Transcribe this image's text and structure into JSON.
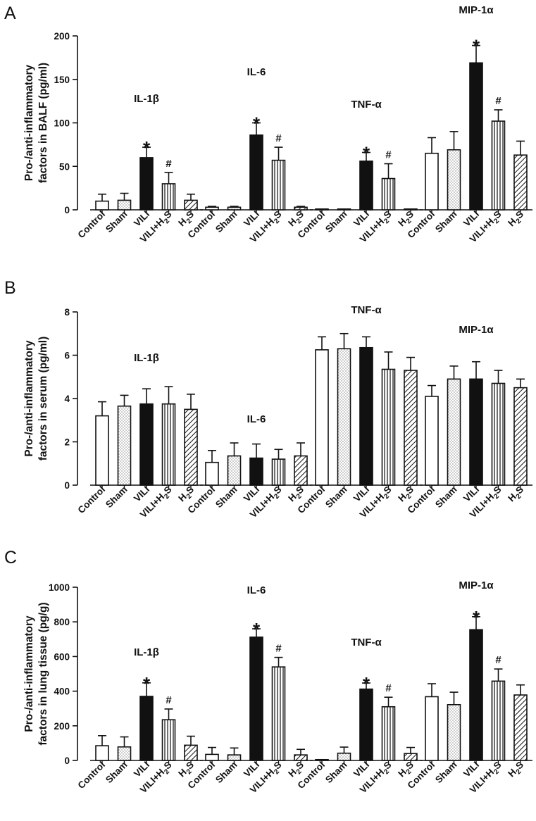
{
  "chart_data": [
    {
      "type": "bar",
      "panel": "A",
      "ylabel_lines": [
        "Pro-/anti-inflammatory",
        "factors in BALF (pg/ml)"
      ],
      "ylim": [
        0,
        200
      ],
      "yticks": [
        0,
        50,
        100,
        150,
        200
      ],
      "categories": [
        "Control",
        "Sham",
        "VILI",
        "VILI+H2S",
        "H2S"
      ],
      "groups": [
        {
          "name": "IL-1β",
          "values": [
            10,
            11,
            60,
            30,
            11
          ],
          "errors": [
            8,
            8,
            12,
            13,
            7
          ],
          "sig": [
            "",
            "",
            "*",
            "#",
            ""
          ]
        },
        {
          "name": "IL-6",
          "values": [
            3,
            3,
            86,
            57,
            3
          ],
          "errors": [
            1,
            1,
            14,
            15,
            1
          ],
          "sig": [
            "",
            "",
            "*",
            "#",
            ""
          ]
        },
        {
          "name": "TNF-α",
          "values": [
            0.5,
            0.5,
            56,
            36,
            0.5
          ],
          "errors": [
            0,
            0,
            10,
            17,
            0
          ],
          "sig": [
            "",
            "",
            "*",
            "#",
            ""
          ]
        },
        {
          "name": "MIP-1α",
          "values": [
            65,
            69,
            169,
            102,
            63
          ],
          "errors": [
            18,
            21,
            20,
            13,
            16
          ],
          "sig": [
            "",
            "",
            "*",
            "#",
            ""
          ]
        }
      ]
    },
    {
      "type": "bar",
      "panel": "B",
      "ylabel_lines": [
        "Pro-/anti-inflammatory",
        "factors in serum (pg/ml)"
      ],
      "ylim": [
        0,
        8
      ],
      "yticks": [
        0,
        2,
        4,
        6,
        8
      ],
      "categories": [
        "Control",
        "Sham",
        "VILI",
        "VILI+H2S",
        "H2S"
      ],
      "groups": [
        {
          "name": "IL-1β",
          "values": [
            3.2,
            3.65,
            3.75,
            3.75,
            3.5
          ],
          "errors": [
            0.65,
            0.5,
            0.7,
            0.8,
            0.7
          ],
          "sig": [
            "",
            "",
            "",
            "",
            ""
          ]
        },
        {
          "name": "IL-6",
          "values": [
            1.05,
            1.35,
            1.25,
            1.2,
            1.35
          ],
          "errors": [
            0.55,
            0.6,
            0.65,
            0.45,
            0.6
          ],
          "sig": [
            "",
            "",
            "",
            "",
            ""
          ]
        },
        {
          "name": "TNF-α",
          "values": [
            6.25,
            6.3,
            6.35,
            5.35,
            5.3
          ],
          "errors": [
            0.6,
            0.7,
            0.5,
            0.8,
            0.6
          ],
          "sig": [
            "",
            "",
            "",
            "",
            ""
          ]
        },
        {
          "name": "MIP-1α",
          "values": [
            4.1,
            4.9,
            4.9,
            4.7,
            4.5
          ],
          "errors": [
            0.5,
            0.6,
            0.8,
            0.6,
            0.4
          ],
          "sig": [
            "",
            "",
            "",
            "",
            ""
          ]
        }
      ]
    },
    {
      "type": "bar",
      "panel": "C",
      "ylabel_lines": [
        "Pro-/anti-inflammatory",
        "factors in lung tissue (pg/g)"
      ],
      "ylim": [
        0,
        1000
      ],
      "yticks": [
        0,
        200,
        400,
        600,
        800,
        1000
      ],
      "categories": [
        "Control",
        "Sham",
        "VILI",
        "VILI+H2S",
        "H2S"
      ],
      "groups": [
        {
          "name": "IL-1β",
          "values": [
            85,
            78,
            370,
            235,
            88
          ],
          "errors": [
            58,
            58,
            78,
            62,
            52
          ],
          "sig": [
            "",
            "",
            "*",
            "#",
            ""
          ]
        },
        {
          "name": "IL-6",
          "values": [
            35,
            32,
            712,
            540,
            32
          ],
          "errors": [
            40,
            40,
            48,
            55,
            32
          ],
          "sig": [
            "",
            "",
            "*",
            "#",
            ""
          ]
        },
        {
          "name": "TNF-α",
          "values": [
            3,
            42,
            412,
            310,
            40
          ],
          "errors": [
            2,
            35,
            35,
            55,
            35
          ],
          "sig": [
            "",
            "",
            "*",
            "#",
            ""
          ]
        },
        {
          "name": "MIP-1α",
          "values": [
            368,
            322,
            755,
            458,
            378
          ],
          "errors": [
            75,
            72,
            75,
            70,
            58
          ],
          "sig": [
            "",
            "",
            "*",
            "#",
            ""
          ]
        }
      ]
    }
  ]
}
